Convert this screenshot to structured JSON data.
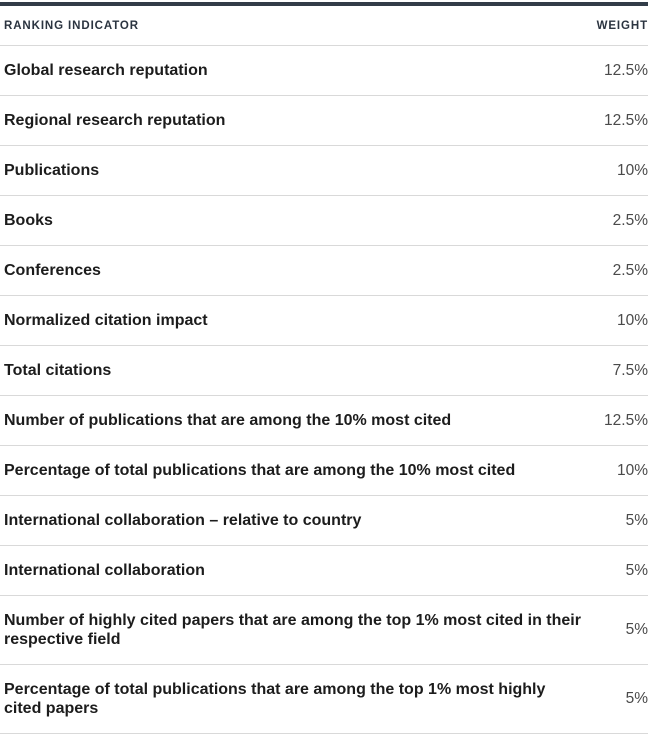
{
  "colors": {
    "top_bar": "#323c48",
    "divider": "#d9d9d9",
    "header_text": "#2b3440",
    "label_text": "#1c1c1c",
    "weight_text": "#4a4a4a"
  },
  "table": {
    "columns": [
      {
        "label": "Ranking Indicator"
      },
      {
        "label": "Weight"
      }
    ],
    "rows": [
      {
        "indicator": "Global research reputation",
        "weight": "12.5%"
      },
      {
        "indicator": "Regional research reputation",
        "weight": "12.5%"
      },
      {
        "indicator": "Publications",
        "weight": "10%"
      },
      {
        "indicator": "Books",
        "weight": "2.5%"
      },
      {
        "indicator": "Conferences",
        "weight": "2.5%"
      },
      {
        "indicator": "Normalized citation impact",
        "weight": "10%"
      },
      {
        "indicator": "Total citations",
        "weight": "7.5%"
      },
      {
        "indicator": "Number of publications that are among the 10% most cited",
        "weight": "12.5%"
      },
      {
        "indicator": "Percentage of total publications that are among the 10% most cited",
        "weight": "10%"
      },
      {
        "indicator": "International collaboration – relative to country",
        "weight": "5%"
      },
      {
        "indicator": "International collaboration",
        "weight": "5%"
      },
      {
        "indicator": "Number of highly cited papers that are among the top 1% most cited in their respective field",
        "weight": "5%"
      },
      {
        "indicator": "Percentage of total publications that are among the top 1% most highly cited papers",
        "weight": "5%"
      }
    ]
  }
}
